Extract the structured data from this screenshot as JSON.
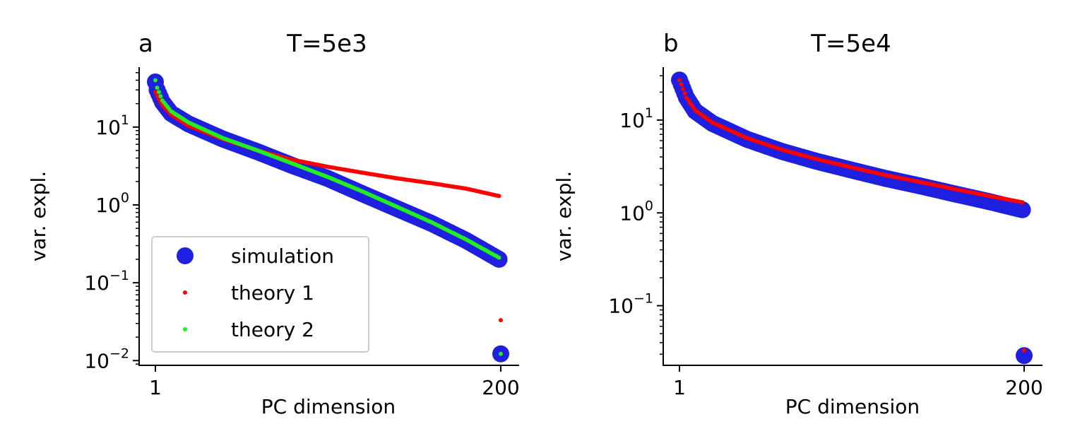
{
  "colors": {
    "simulation": "#1f1fe0",
    "theory1": "#ff0000",
    "theory2": "#22ee22",
    "axis": "#000000"
  },
  "legend": [
    {
      "key": "simulation",
      "label": "simulation",
      "marker": "large"
    },
    {
      "key": "theory1",
      "label": "theory 1",
      "marker": "small"
    },
    {
      "key": "theory2",
      "label": "theory 2",
      "marker": "small"
    }
  ],
  "chart_data": [
    {
      "type": "scatter",
      "panel_label": "a",
      "title": "T=5e3",
      "xlabel": "PC dimension",
      "ylabel": "var. expl.",
      "xscale": "linear",
      "yscale": "log",
      "xlim": [
        -9,
        210
      ],
      "ylim_log10": [
        -2.07,
        1.77
      ],
      "x_ticks": [
        {
          "value": 1,
          "label": "1"
        },
        {
          "value": 200,
          "label": "200"
        }
      ],
      "y_ticks": [
        {
          "exp": 1,
          "base": "10",
          "sup": "1"
        },
        {
          "exp": 0,
          "base": "10",
          "sup": "0"
        },
        {
          "exp": -1,
          "base": "10",
          "sup": "−1"
        },
        {
          "exp": -2,
          "base": "10",
          "sup": "−2"
        }
      ],
      "legend_position": "lower left",
      "series": [
        {
          "name": "simulation",
          "x_range": [
            1,
            200
          ],
          "y_first": 38,
          "y_shape": [
            [
              1,
              38
            ],
            [
              2,
              30
            ],
            [
              5,
              21
            ],
            [
              10,
              15
            ],
            [
              20,
              11
            ],
            [
              40,
              7
            ],
            [
              60,
              4.8
            ],
            [
              80,
              3.2
            ],
            [
              100,
              2.2
            ],
            [
              120,
              1.4
            ],
            [
              140,
              0.9
            ],
            [
              160,
              0.58
            ],
            [
              180,
              0.35
            ],
            [
              199,
              0.2
            ]
          ],
          "y_last": 0.0122
        },
        {
          "name": "theory 1",
          "x_range": [
            1,
            200
          ],
          "y_first": 28,
          "y_shape": [
            [
              1,
              28
            ],
            [
              2,
              25
            ],
            [
              5,
              19
            ],
            [
              10,
              14.5
            ],
            [
              20,
              10.4
            ],
            [
              40,
              7
            ],
            [
              60,
              5
            ],
            [
              80,
              3.8
            ],
            [
              100,
              3.1
            ],
            [
              120,
              2.6
            ],
            [
              140,
              2.2
            ],
            [
              160,
              1.9
            ],
            [
              180,
              1.62
            ],
            [
              199,
              1.3
            ]
          ],
          "y_last": 0.033
        },
        {
          "name": "theory 2",
          "x_range": [
            1,
            200
          ],
          "y_first": 40,
          "y_shape": [
            [
              1,
              40
            ],
            [
              2,
              32
            ],
            [
              5,
              22
            ],
            [
              10,
              16
            ],
            [
              20,
              11.5
            ],
            [
              40,
              7.2
            ],
            [
              60,
              5
            ],
            [
              80,
              3.4
            ],
            [
              100,
              2.3
            ],
            [
              120,
              1.5
            ],
            [
              140,
              0.95
            ],
            [
              160,
              0.6
            ],
            [
              180,
              0.36
            ],
            [
              199,
              0.21
            ]
          ],
          "y_last": 0.0122
        }
      ]
    },
    {
      "type": "scatter",
      "panel_label": "b",
      "title": "T=5e4",
      "xlabel": "PC dimension",
      "ylabel": "var. expl.",
      "xscale": "linear",
      "yscale": "log",
      "xlim": [
        -9,
        210
      ],
      "ylim_log10": [
        -1.65,
        1.57
      ],
      "x_ticks": [
        {
          "value": 1,
          "label": "1"
        },
        {
          "value": 200,
          "label": "200"
        }
      ],
      "y_ticks": [
        {
          "exp": 1,
          "base": "10",
          "sup": "1"
        },
        {
          "exp": 0,
          "base": "10",
          "sup": "0"
        },
        {
          "exp": -1,
          "base": "10",
          "sup": "−1"
        }
      ],
      "series": [
        {
          "name": "simulation",
          "x_range": [
            1,
            200
          ],
          "y_first": 27,
          "y_shape": [
            [
              1,
              27
            ],
            [
              5,
              17.5
            ],
            [
              10,
              12.5
            ],
            [
              20,
              9.2
            ],
            [
              40,
              6.2
            ],
            [
              60,
              4.6
            ],
            [
              80,
              3.6
            ],
            [
              100,
              2.9
            ],
            [
              120,
              2.35
            ],
            [
              140,
              1.95
            ],
            [
              160,
              1.6
            ],
            [
              180,
              1.32
            ],
            [
              199,
              1.08
            ]
          ],
          "y_last": 0.029
        },
        {
          "name": "theory 1",
          "x_range": [
            1,
            200
          ],
          "y_first": 27,
          "y_shape": [
            [
              1,
              27
            ],
            [
              5,
              17.5
            ],
            [
              10,
              12.8
            ],
            [
              20,
              9.4
            ],
            [
              40,
              6.4
            ],
            [
              60,
              4.8
            ],
            [
              80,
              3.8
            ],
            [
              100,
              3.1
            ],
            [
              120,
              2.55
            ],
            [
              140,
              2.15
            ],
            [
              160,
              1.8
            ],
            [
              180,
              1.52
            ],
            [
              199,
              1.3
            ]
          ],
          "y_last": 0.033
        }
      ]
    }
  ]
}
